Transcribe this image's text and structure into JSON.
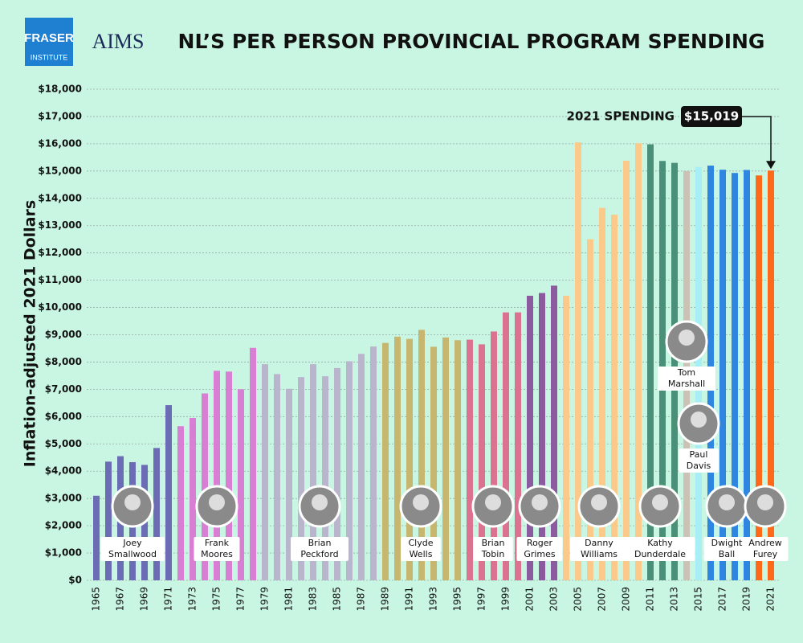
{
  "chart_data": {
    "type": "bar",
    "title": "NL’S PER PERSON PROVINCIAL PROGRAM SPENDING",
    "logos": {
      "fraser": "FRASER",
      "fraser_sub": "INSTITUTE",
      "aims": "AIMS"
    },
    "y_label": "Inflation-adjusted 2021 Dollars",
    "categories": [
      "1965",
      null,
      "1967",
      null,
      "1969",
      null,
      "1971",
      null,
      "1973",
      null,
      "1975",
      null,
      "1977",
      null,
      "1979",
      null,
      "1981",
      null,
      "1983",
      null,
      "1985",
      null,
      "1987",
      null,
      "1989",
      null,
      "1991",
      null,
      "1993",
      null,
      "1995",
      null,
      "1997",
      null,
      "1999",
      null,
      "2001",
      null,
      "2003",
      null,
      "2005",
      null,
      "2007",
      null,
      "2009",
      null,
      "2011",
      null,
      "2013",
      null,
      "2015",
      null,
      "2017",
      null,
      "2019",
      null,
      "2021"
    ],
    "values": [
      3100,
      4350,
      4550,
      4330,
      4230,
      4850,
      6420,
      5650,
      5950,
      6850,
      7680,
      7650,
      7000,
      8520,
      7920,
      7560,
      7020,
      7450,
      7920,
      7480,
      7780,
      8030,
      8300,
      8570,
      8700,
      8930,
      8850,
      9180,
      8560,
      8900,
      8800,
      8820,
      8650,
      9120,
      9820,
      9820,
      10430,
      10530,
      10800,
      10430,
      16050,
      12500,
      13650,
      13400,
      15380,
      16020,
      15980,
      15370,
      15300,
      15000,
      15150,
      15200,
      15050,
      14930,
      15040,
      14840,
      15019
    ],
    "colors": [
      "#6c6cb4",
      "#6c6cb4",
      "#6c6cb4",
      "#6c6cb4",
      "#6c6cb4",
      "#6c6cb4",
      "#6c6cb4",
      "#d97fd3",
      "#d97fd3",
      "#d97fd3",
      "#d97fd3",
      "#d97fd3",
      "#d97fd3",
      "#d97fd3",
      "#b9b5cd",
      "#b9b5cd",
      "#b9b5cd",
      "#b9b5cd",
      "#b9b5cd",
      "#b9b5cd",
      "#b9b5cd",
      "#b9b5cd",
      "#b9b5cd",
      "#b9b5cd",
      "#c6b66f",
      "#c6b66f",
      "#c6b66f",
      "#c6b66f",
      "#c6b66f",
      "#c6b66f",
      "#c6b66f",
      "#db728f",
      "#db728f",
      "#db728f",
      "#db728f",
      "#db728f",
      "#8b5a9f",
      "#8b5a9f",
      "#8b5a9f",
      "#fbc98a",
      "#fbc98a",
      "#fbc98a",
      "#fbc98a",
      "#fbc98a",
      "#fbc98a",
      "#fbc98a",
      "#4a8f78",
      "#4a8f78",
      "#4a8f78",
      "#cbc1b4",
      "#a8eef5",
      "#2f86e0",
      "#2f86e0",
      "#2f86e0",
      "#2f86e0",
      "#ff6a1a",
      "#ff6a1a"
    ],
    "value_labels": [
      null,
      null,
      null,
      null,
      null,
      null,
      null,
      null,
      null,
      null,
      null,
      null,
      null,
      null,
      null,
      null,
      null,
      null,
      null,
      null,
      null,
      null,
      null,
      null,
      null,
      null,
      null,
      null,
      null,
      null,
      null,
      null,
      null,
      null,
      null,
      null,
      null,
      null,
      null,
      null,
      null,
      null,
      null,
      null,
      null,
      null,
      null,
      null,
      null,
      null,
      null,
      null,
      null,
      null,
      null,
      null,
      "$15,019"
    ],
    "callout": "2021 SPENDING",
    "premiers": [
      [
        "Joey",
        "Smallwood"
      ],
      [
        "Frank",
        "Moores"
      ],
      [
        "Brian",
        "Peckford"
      ],
      [
        "Clyde",
        "Wells"
      ],
      [
        "Brian",
        "Tobin"
      ],
      [
        "Roger",
        "Grimes"
      ],
      [
        "Danny",
        "Williams"
      ],
      [
        "Kathy",
        "Dunderdale"
      ],
      [
        "Tom",
        "Marshall"
      ],
      [
        "Paul",
        "Davis"
      ],
      [
        "Dwight",
        "Ball"
      ],
      [
        "Andrew",
        "Furey"
      ]
    ],
    "ylim": [
      0,
      18000
    ],
    "yticks": [
      {
        "value": 0,
        "label": "$0"
      },
      {
        "value": 1000,
        "label": "$1,000"
      },
      {
        "value": 2000,
        "label": "$2,000"
      },
      {
        "value": 3000,
        "label": "$3,000"
      },
      {
        "value": 4000,
        "label": "$4,000"
      },
      {
        "value": 5000,
        "label": "$5,000"
      },
      {
        "value": 6000,
        "label": "$6,000"
      },
      {
        "value": 7000,
        "label": "$7,000"
      },
      {
        "value": 8000,
        "label": "$8,000"
      },
      {
        "value": 9000,
        "label": "$9,000"
      },
      {
        "value": 10000,
        "label": "$10,000"
      },
      {
        "value": 11000,
        "label": "$11,000"
      },
      {
        "value": 12000,
        "label": "$12,000"
      },
      {
        "value": 13000,
        "label": "$13,000"
      },
      {
        "value": 14000,
        "label": "$14,000"
      },
      {
        "value": 15000,
        "label": "$15,000"
      },
      {
        "value": 16000,
        "label": "$16,000"
      },
      {
        "value": 17000,
        "label": "$17,000"
      },
      {
        "value": 18000,
        "label": "$18,000"
      }
    ],
    "grid": true
  }
}
